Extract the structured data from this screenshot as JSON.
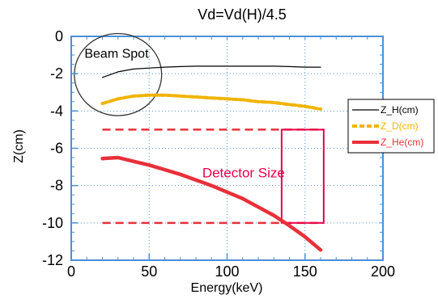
{
  "chart_data": {
    "type": "line",
    "title": "Vd=Vd(H)/4.5",
    "xlabel": "Energy(keV)",
    "ylabel": "Z(cm)",
    "xlim": [
      0,
      200
    ],
    "ylim": [
      -12,
      0
    ],
    "xticks": [
      0,
      50,
      100,
      150,
      200
    ],
    "yticks": [
      0,
      -2,
      -4,
      -6,
      -8,
      -10,
      -12
    ],
    "grid": true,
    "legend_position": "right",
    "colors": {
      "frame": "#4a90d9",
      "grid": "#4a90d9",
      "z_h": "#000000",
      "z_d": "#f0b400",
      "z_he": "#e8303a",
      "detector": "#e8004a"
    },
    "series": [
      {
        "name": "Z_H(cm)",
        "style": "solid-thin",
        "x": [
          20,
          30,
          40,
          50,
          60,
          70,
          80,
          90,
          100,
          110,
          120,
          130,
          140,
          150,
          160
        ],
        "y": [
          -2.2,
          -1.9,
          -1.75,
          -1.7,
          -1.65,
          -1.62,
          -1.6,
          -1.6,
          -1.6,
          -1.6,
          -1.6,
          -1.6,
          -1.62,
          -1.65,
          -1.65
        ]
      },
      {
        "name": "Z_D(cm)",
        "style": "dashed-thick",
        "x": [
          20,
          30,
          40,
          50,
          60,
          70,
          80,
          90,
          100,
          110,
          120,
          130,
          140,
          150,
          160
        ],
        "y": [
          -3.6,
          -3.35,
          -3.2,
          -3.15,
          -3.15,
          -3.2,
          -3.25,
          -3.3,
          -3.35,
          -3.4,
          -3.5,
          -3.55,
          -3.65,
          -3.75,
          -3.9
        ]
      },
      {
        "name": "Z_He(cm)",
        "style": "solid-thick",
        "x": [
          20,
          30,
          40,
          50,
          60,
          70,
          80,
          90,
          100,
          110,
          120,
          130,
          140,
          150,
          160
        ],
        "y": [
          -6.55,
          -6.5,
          -6.7,
          -6.9,
          -7.15,
          -7.4,
          -7.7,
          -8.0,
          -8.35,
          -8.7,
          -9.15,
          -9.6,
          -10.15,
          -10.75,
          -11.45
        ]
      }
    ],
    "annotations": {
      "beam_spot": {
        "label": "Beam Spot",
        "center": [
          30,
          -2.05
        ],
        "radius_x": 28,
        "radius_y": 2.2
      },
      "detector_lines": {
        "y_values": [
          -5,
          -10
        ],
        "x_range": [
          20,
          162
        ]
      },
      "detector_box": {
        "label": "Detector Size",
        "x_range": [
          135,
          162
        ],
        "y_range": [
          -10,
          -5
        ]
      }
    }
  }
}
